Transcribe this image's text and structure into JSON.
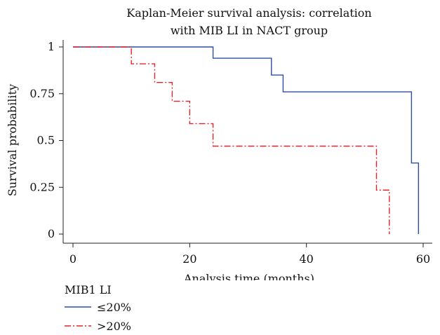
{
  "chart_data": {
    "type": "line",
    "title": [
      "Kaplan-Meier survival analysis: correlation",
      "with MIB LI in NACT group"
    ],
    "xlabel": "Analysis time (months)",
    "ylabel": "Survival probability",
    "xlim": [
      0,
      60
    ],
    "ylim": [
      0,
      1
    ],
    "xticks": [
      0,
      20,
      40,
      60
    ],
    "yticks": [
      {
        "value": 0,
        "label": "0"
      },
      {
        "value": 0.25,
        "label": "0.25"
      },
      {
        "value": 0.5,
        "label": "0.5"
      },
      {
        "value": 0.75,
        "label": "0.75"
      },
      {
        "value": 1,
        "label": "1"
      }
    ],
    "step": true,
    "legend": {
      "title": "MIB1 LI",
      "placement": "bottom-left"
    },
    "series": [
      {
        "name": "≤20%",
        "color": "#2b4ea2",
        "style": "solid",
        "x": [
          0,
          24,
          34,
          36,
          58,
          59.2
        ],
        "y": [
          1,
          0.94,
          0.85,
          0.76,
          0.38,
          0
        ]
      },
      {
        "name": ">20%",
        "color": "#e8212b",
        "style": "dashdot",
        "x": [
          0,
          10,
          14,
          17,
          20,
          24,
          52,
          54.2
        ],
        "y": [
          1,
          0.91,
          0.81,
          0.71,
          0.59,
          0.47,
          0.235,
          0
        ]
      }
    ]
  }
}
